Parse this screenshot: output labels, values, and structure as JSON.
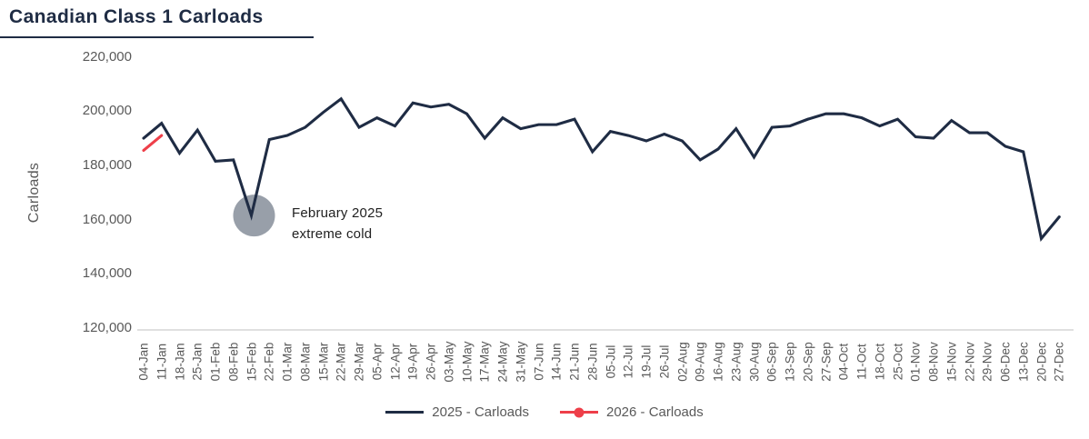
{
  "chart_data": {
    "type": "line",
    "title": "Canadian Class 1 Carloads",
    "ylabel": "Carloads",
    "xlabel": "",
    "ylim": [
      120000,
      220000
    ],
    "grid": false,
    "legend_position": "bottom",
    "y_ticks": [
      {
        "label": "220,000",
        "value": 220000
      },
      {
        "label": "200,000",
        "value": 200000
      },
      {
        "label": "180,000",
        "value": 180000
      },
      {
        "label": "160,000",
        "value": 160000
      },
      {
        "label": "140,000",
        "value": 140000
      },
      {
        "label": "120,000",
        "value": 120000
      }
    ],
    "categories": [
      "04-Jan",
      "11-Jan",
      "18-Jan",
      "25-Jan",
      "01-Feb",
      "08-Feb",
      "15-Feb",
      "22-Feb",
      "01-Mar",
      "08-Mar",
      "15-Mar",
      "22-Mar",
      "29-Mar",
      "05-Apr",
      "12-Apr",
      "19-Apr",
      "26-Apr",
      "03-May",
      "10-May",
      "17-May",
      "24-May",
      "31-May",
      "07-Jun",
      "14-Jun",
      "21-Jun",
      "28-Jun",
      "05-Jul",
      "12-Jul",
      "19-Jul",
      "26-Jul",
      "02-Aug",
      "09-Aug",
      "16-Aug",
      "23-Aug",
      "30-Aug",
      "06-Sep",
      "13-Sep",
      "20-Sep",
      "27-Sep",
      "04-Oct",
      "11-Oct",
      "18-Oct",
      "25-Oct",
      "01-Nov",
      "08-Nov",
      "15-Nov",
      "22-Nov",
      "29-Nov",
      "06-Dec",
      "13-Dec",
      "20-Dec",
      "27-Dec"
    ],
    "series": [
      {
        "name": "2025 - Carloads",
        "color": "#1f2c44",
        "values": [
          190000,
          195500,
          184500,
          193000,
          181500,
          182000,
          161500,
          189500,
          191000,
          194000,
          199500,
          204500,
          194000,
          197500,
          194500,
          203000,
          201500,
          202500,
          199000,
          190000,
          197500,
          193500,
          195000,
          195000,
          197000,
          185000,
          192500,
          191000,
          189000,
          191500,
          189000,
          182000,
          186000,
          193500,
          183000,
          194000,
          194500,
          197000,
          199000,
          199000,
          197500,
          194500,
          197000,
          190500,
          190000,
          196500,
          192000,
          192000,
          187000,
          185000,
          153000,
          161000
        ]
      },
      {
        "name": "2026 - Carloads",
        "color": "#ee3f49",
        "values": [
          185500,
          191000
        ]
      }
    ],
    "annotation": {
      "line1": "February 2025",
      "line2": "extreme cold",
      "week": "15-Feb",
      "value": 161500
    }
  },
  "colors": {
    "accent_navy": "#1f2c44",
    "accent_red": "#ee3f49",
    "annotation_circle": "#989fa9",
    "axis_text": "#595959",
    "axis_line": "#d6d6d6"
  }
}
